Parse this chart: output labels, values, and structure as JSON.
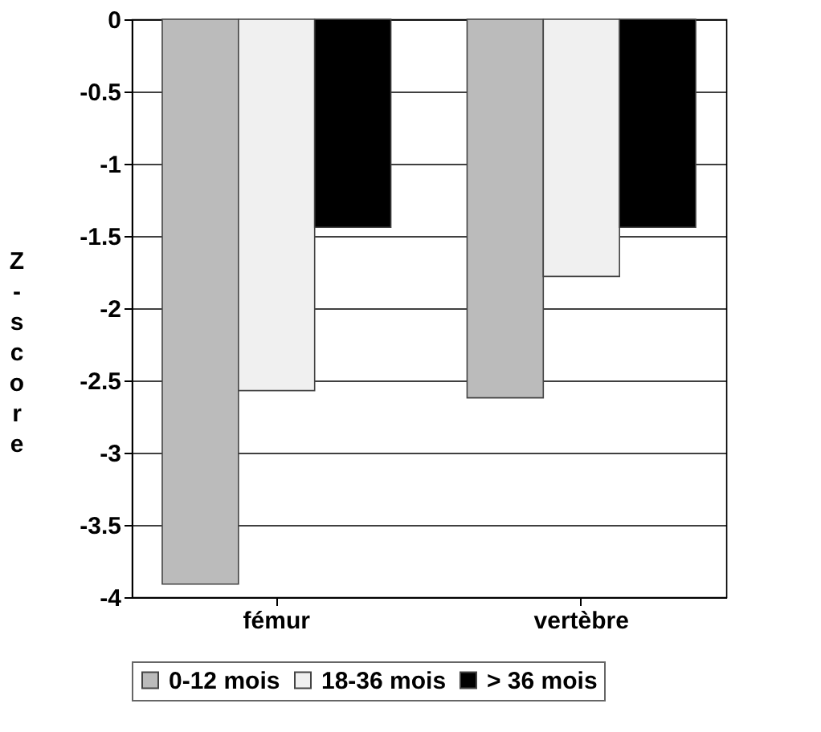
{
  "chart_data": {
    "type": "bar",
    "ylabel": "Z-score",
    "categories": [
      "fémur",
      "vertèbre"
    ],
    "series": [
      {
        "name": "0-12 mois",
        "color": "#bbbbbb",
        "values": [
          -3.91,
          -2.62
        ]
      },
      {
        "name": "18-36 mois",
        "color": "#f0f0f0",
        "values": [
          -2.57,
          -1.78
        ]
      },
      {
        "name": "> 36 mois",
        "color": "#000000",
        "values": [
          -1.44,
          -1.44
        ]
      }
    ],
    "ylim": [
      -4,
      0
    ],
    "yticks": [
      0,
      -0.5,
      -1,
      -1.5,
      -2,
      -2.5,
      -3,
      -3.5,
      -4
    ],
    "grid": "y",
    "legend": "bottom"
  }
}
